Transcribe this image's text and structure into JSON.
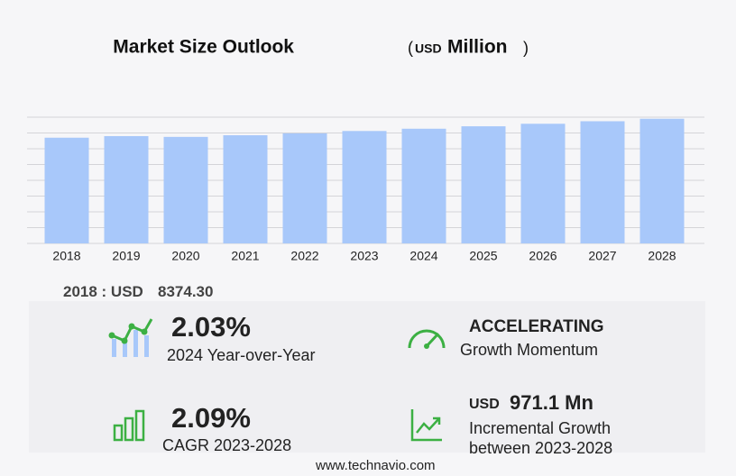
{
  "chart_data": {
    "type": "bar",
    "title": "Market Size Outlook",
    "title_open": "(",
    "title_unit_prefix": "USD",
    "title_unit": "Million",
    "title_close": ")",
    "categories": [
      "2018",
      "2019",
      "2020",
      "2021",
      "2022",
      "2023",
      "2024",
      "2025",
      "2026",
      "2027",
      "2028"
    ],
    "values": [
      8374.3,
      8500,
      8440,
      8570,
      8720,
      8906,
      9087,
      9280,
      9480,
      9680,
      9877
    ],
    "color": "#a8c8fa",
    "ylim": [
      0,
      10000
    ],
    "yticks": [
      0,
      1250,
      2500,
      3750,
      5000,
      6250,
      7500,
      8750,
      10000
    ],
    "grid": true
  },
  "base": {
    "label": "2018 : USD",
    "value": "8374.30"
  },
  "stats": [
    {
      "value": "2.03%",
      "label": "2024 Year-over-Year"
    },
    {
      "value": "ACCELERATING",
      "label": "Growth Momentum"
    },
    {
      "value": "2.09%",
      "label": "CAGR 2023-2028"
    },
    {
      "prefix": "USD",
      "value": "971.1 Mn",
      "label": "Incremental Growth",
      "label2": "between 2023-2028"
    }
  ],
  "footer": "www.technavio.com"
}
